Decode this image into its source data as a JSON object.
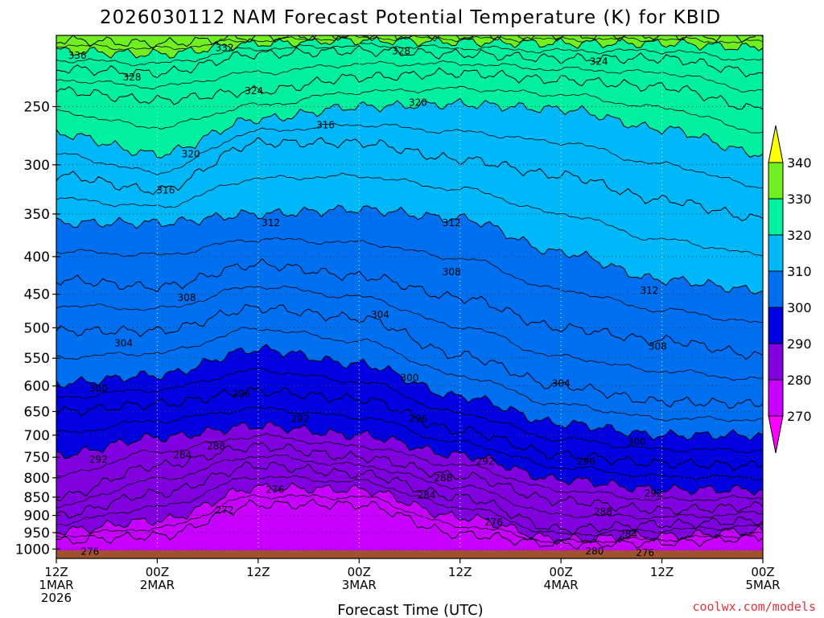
{
  "chart_data": {
    "type": "contour",
    "title": "2026030112 NAM Forecast Potential Temperature (K) for KBID",
    "xlabel": "Forecast Time (UTC)",
    "ylabel": "",
    "credit": "coolwx.com/models",
    "y_scale": "log-pressure",
    "ylim_hpa": [
      1030,
      200
    ],
    "xlim_hours": [
      0,
      84
    ],
    "grid": true,
    "y_ticks": [
      250,
      300,
      350,
      400,
      450,
      500,
      550,
      600,
      650,
      700,
      750,
      800,
      850,
      900,
      950,
      1000
    ],
    "x_ticks": [
      {
        "hour": 0,
        "lines": [
          "12Z",
          "1MAR",
          "2026"
        ]
      },
      {
        "hour": 12,
        "lines": [
          "00Z",
          "2MAR"
        ]
      },
      {
        "hour": 24,
        "lines": [
          "12Z"
        ]
      },
      {
        "hour": 36,
        "lines": [
          "00Z",
          "3MAR"
        ]
      },
      {
        "hour": 48,
        "lines": [
          "12Z"
        ]
      },
      {
        "hour": 60,
        "lines": [
          "00Z",
          "4MAR"
        ]
      },
      {
        "hour": 72,
        "lines": [
          "12Z"
        ]
      },
      {
        "hour": 84,
        "lines": [
          "00Z",
          "5MAR"
        ]
      }
    ],
    "colorbar": {
      "levels": [
        270,
        280,
        290,
        300,
        310,
        320,
        330,
        340
      ],
      "colors": [
        "#ff00ff",
        "#c800ff",
        "#8000e0",
        "#0000e0",
        "#0070f0",
        "#00b8f8",
        "#00f0a0",
        "#70f020",
        "#ffff00"
      ]
    },
    "contour_interval": 4,
    "isentropes": [
      {
        "theta": 276,
        "hour": [
          0,
          12,
          24,
          36,
          48,
          60,
          72,
          84
        ],
        "hpa": [
          975,
          960,
          870,
          870,
          955,
          985,
          980,
          965
        ]
      },
      {
        "theta": 280,
        "hour": [
          0,
          12,
          24,
          36,
          48,
          60,
          72,
          84
        ],
        "hpa": [
          945,
          915,
          825,
          830,
          905,
          970,
          960,
          945
        ]
      },
      {
        "theta": 284,
        "hour": [
          0,
          12,
          24,
          36,
          48,
          60,
          72,
          84
        ],
        "hpa": [
          900,
          840,
          770,
          790,
          850,
          940,
          925,
          915
        ]
      },
      {
        "theta": 288,
        "hour": [
          0,
          12,
          24,
          36,
          48,
          60,
          72,
          84
        ],
        "hpa": [
          850,
          770,
          725,
          750,
          795,
          860,
          885,
          875
        ]
      },
      {
        "theta": 292,
        "hour": [
          0,
          12,
          24,
          36,
          48,
          60,
          72,
          84
        ],
        "hpa": [
          745,
          705,
          680,
          700,
          745,
          805,
          830,
          830
        ]
      },
      {
        "theta": 296,
        "hour": [
          0,
          12,
          24,
          36,
          48,
          60,
          72,
          84
        ],
        "hpa": [
          650,
          635,
          610,
          625,
          690,
          745,
          765,
          770
        ]
      },
      {
        "theta": 300,
        "hour": [
          0,
          12,
          24,
          36,
          48,
          60,
          72,
          84
        ],
        "hpa": [
          595,
          580,
          535,
          560,
          620,
          675,
          700,
          700
        ]
      },
      {
        "theta": 304,
        "hour": [
          0,
          12,
          24,
          36,
          48,
          60,
          72,
          84
        ],
        "hpa": [
          505,
          505,
          470,
          485,
          545,
          600,
          630,
          635
        ]
      },
      {
        "theta": 308,
        "hour": [
          0,
          12,
          24,
          36,
          48,
          60,
          72,
          84
        ],
        "hpa": [
          430,
          440,
          410,
          425,
          455,
          500,
          520,
          545
        ]
      },
      {
        "theta": 312,
        "hour": [
          0,
          12,
          24,
          36,
          48,
          60,
          72,
          84
        ],
        "hpa": [
          360,
          360,
          350,
          345,
          355,
          395,
          430,
          445
        ]
      },
      {
        "theta": 316,
        "hour": [
          0,
          12,
          24,
          36,
          48,
          60,
          72,
          84
        ],
        "hpa": [
          310,
          325,
          280,
          280,
          295,
          310,
          335,
          355
        ]
      },
      {
        "theta": 320,
        "hour": [
          0,
          12,
          24,
          36,
          48,
          60,
          72,
          84
        ],
        "hpa": [
          272,
          290,
          260,
          250,
          248,
          252,
          268,
          290
        ]
      },
      {
        "theta": 324,
        "hour": [
          0,
          12,
          24,
          36,
          48,
          60,
          72,
          84
        ],
        "hpa": [
          238,
          245,
          238,
          228,
          225,
          230,
          235,
          252
        ]
      },
      {
        "theta": 328,
        "hour": [
          0,
          12,
          24,
          36,
          48,
          60,
          72,
          84
        ],
        "hpa": [
          222,
          225,
          212,
          210,
          212,
          215,
          215,
          225
        ]
      },
      {
        "theta": 332,
        "hour": [
          0,
          12,
          24,
          36,
          48,
          60,
          72,
          84
        ],
        "hpa": [
          210,
          212,
          205,
          203,
          204,
          205,
          205,
          208
        ]
      },
      {
        "theta": 336,
        "hour": [
          0,
          12,
          24,
          36,
          48,
          60,
          72,
          84
        ],
        "hpa": [
          203,
          205,
          201,
          200,
          200,
          200,
          200,
          201
        ]
      }
    ],
    "contour_labels": [
      {
        "text": "336",
        "hour": 2.5,
        "hpa": 213
      },
      {
        "text": "332",
        "hour": 20,
        "hpa": 208
      },
      {
        "text": "328",
        "hour": 41,
        "hpa": 210
      },
      {
        "text": "324",
        "hour": 64.5,
        "hpa": 217
      },
      {
        "text": "328",
        "hour": 9,
        "hpa": 228
      },
      {
        "text": "324",
        "hour": 23.5,
        "hpa": 238
      },
      {
        "text": "320",
        "hour": 43,
        "hpa": 247
      },
      {
        "text": "316",
        "hour": 32,
        "hpa": 265
      },
      {
        "text": "320",
        "hour": 16,
        "hpa": 290
      },
      {
        "text": "316",
        "hour": 13,
        "hpa": 325
      },
      {
        "text": "312",
        "hour": 25.5,
        "hpa": 360
      },
      {
        "text": "312",
        "hour": 47,
        "hpa": 360
      },
      {
        "text": "308",
        "hour": 47,
        "hpa": 420
      },
      {
        "text": "312",
        "hour": 70.5,
        "hpa": 445
      },
      {
        "text": "308",
        "hour": 15.5,
        "hpa": 455
      },
      {
        "text": "304",
        "hour": 38.5,
        "hpa": 480
      },
      {
        "text": "308",
        "hour": 71.5,
        "hpa": 530
      },
      {
        "text": "304",
        "hour": 8,
        "hpa": 525
      },
      {
        "text": "300",
        "hour": 42,
        "hpa": 585
      },
      {
        "text": "304",
        "hour": 60,
        "hpa": 595
      },
      {
        "text": "300",
        "hour": 5,
        "hpa": 605
      },
      {
        "text": "296",
        "hour": 22,
        "hpa": 615
      },
      {
        "text": "292",
        "hour": 29,
        "hpa": 665
      },
      {
        "text": "296",
        "hour": 43,
        "hpa": 665
      },
      {
        "text": "300",
        "hour": 69,
        "hpa": 715
      },
      {
        "text": "288",
        "hour": 19,
        "hpa": 725
      },
      {
        "text": "284",
        "hour": 15,
        "hpa": 745
      },
      {
        "text": "292",
        "hour": 5,
        "hpa": 755
      },
      {
        "text": "292",
        "hour": 51,
        "hpa": 760
      },
      {
        "text": "296",
        "hour": 63,
        "hpa": 760
      },
      {
        "text": "288",
        "hour": 46,
        "hpa": 800
      },
      {
        "text": "292",
        "hour": 71,
        "hpa": 840
      },
      {
        "text": "276",
        "hour": 26,
        "hpa": 830
      },
      {
        "text": "284",
        "hour": 44,
        "hpa": 845
      },
      {
        "text": "272",
        "hour": 20,
        "hpa": 885
      },
      {
        "text": "288",
        "hour": 65,
        "hpa": 890
      },
      {
        "text": "276",
        "hour": 52,
        "hpa": 920
      },
      {
        "text": "284",
        "hour": 68,
        "hpa": 955
      },
      {
        "text": "276",
        "hour": 4,
        "hpa": 1008
      },
      {
        "text": "280",
        "hour": 64,
        "hpa": 1007
      },
      {
        "text": "276",
        "hour": 70,
        "hpa": 1012
      }
    ]
  }
}
